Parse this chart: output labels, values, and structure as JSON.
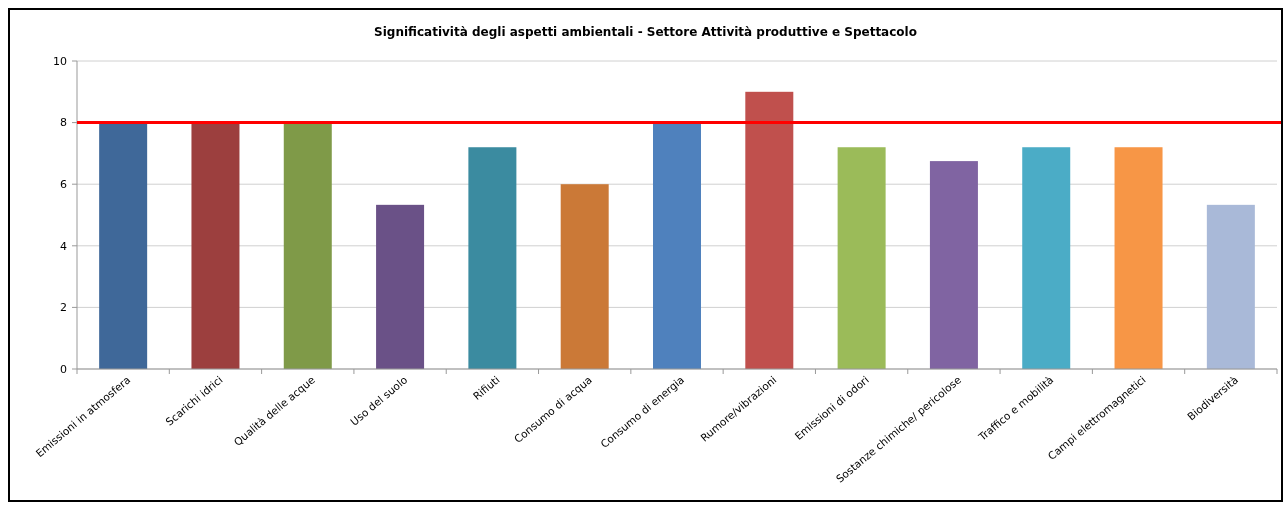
{
  "chart_data": {
    "type": "bar",
    "title": "Significatività degli aspetti ambientali - Settore Attività produttive e Spettacolo",
    "categories": [
      "Emissioni in atmosfera",
      "Scarichi idrici",
      "Qualità delle acque",
      "Uso del suolo",
      "Rifiuti",
      "Consumo di acqua",
      "Consumo di energia",
      "Rumore/vibrazioni",
      "Emissioni di odori",
      "Sostanze chimiche/ pericolose",
      "Traffico e mobilità",
      "Campi elettromagnetici",
      "Biodiversità"
    ],
    "values": [
      8,
      8,
      8,
      5.33,
      7.2,
      6,
      8,
      9,
      7.2,
      6.75,
      7.2,
      7.2,
      5.33
    ],
    "colors": [
      "#3f6899",
      "#9c3f3e",
      "#7f9a48",
      "#6a5187",
      "#3b8ba0",
      "#cb7937",
      "#4f81bd",
      "#c0504d",
      "#9bbb59",
      "#8064a2",
      "#4bacc6",
      "#f79646",
      "#a9b9d8"
    ],
    "ylim": [
      0,
      10
    ],
    "yticks": [
      0,
      2,
      4,
      6,
      8,
      10
    ],
    "grid": "y",
    "ref_lines": [
      {
        "axis": "y",
        "value": 8,
        "color": "#ff0000"
      }
    ]
  }
}
